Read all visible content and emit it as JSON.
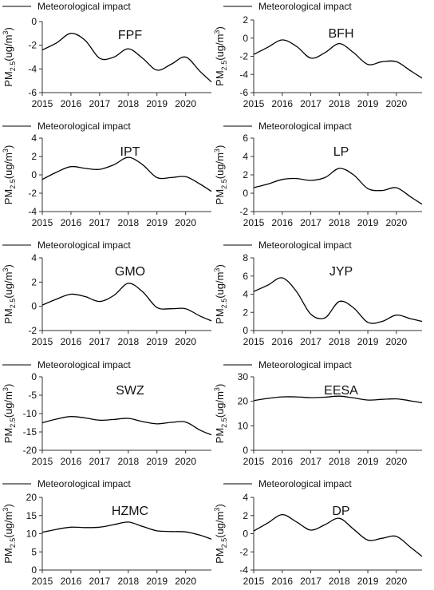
{
  "legend_label": "Meteorological impact",
  "ylabel": "PM2.5(ug/m3)",
  "ylabel_parts": {
    "base": "PM",
    "sub": "2.5",
    "unit_open": "(ug/m",
    "sup": "3",
    "unit_close": ")"
  },
  "bfh_ylabel": "PM2.5(ug/m3)",
  "line_color": "#000000",
  "chart_data": [
    {
      "type": "line",
      "title": "FPF",
      "ylim": [
        -6,
        0
      ],
      "yticks": [
        -6,
        -4,
        -2,
        0
      ],
      "xlim": [
        2015,
        2020.9
      ],
      "xticks": [
        2015,
        2016,
        2017,
        2018,
        2019,
        2020
      ],
      "series": [
        {
          "x": [
            2015,
            2015.5,
            2016,
            2016.5,
            2017,
            2017.5,
            2018,
            2018.5,
            2019,
            2019.5,
            2020,
            2020.5,
            2020.9
          ],
          "values": [
            -2.4,
            -1.8,
            -1.0,
            -1.6,
            -3.1,
            -3.0,
            -2.3,
            -3.1,
            -4.1,
            -3.6,
            -3.0,
            -4.2,
            -5.1
          ]
        }
      ]
    },
    {
      "type": "line",
      "title": "BFH",
      "ylim": [
        -6,
        2
      ],
      "yticks": [
        -6,
        -4,
        -2,
        0,
        2
      ],
      "xlim": [
        2015,
        2020.9
      ],
      "xticks": [
        2015,
        2016,
        2017,
        2018,
        2019,
        2020
      ],
      "series": [
        {
          "x": [
            2015,
            2015.5,
            2016,
            2016.5,
            2017,
            2017.5,
            2018,
            2018.5,
            2019,
            2019.5,
            2020,
            2020.5,
            2020.9
          ],
          "values": [
            -1.8,
            -1.0,
            -0.2,
            -0.9,
            -2.2,
            -1.6,
            -0.6,
            -1.6,
            -2.9,
            -2.6,
            -2.6,
            -3.6,
            -4.4
          ]
        }
      ]
    },
    {
      "type": "line",
      "title": "IPT",
      "ylim": [
        -4,
        4
      ],
      "yticks": [
        -4,
        -2,
        0,
        2,
        4
      ],
      "xlim": [
        2015,
        2020.9
      ],
      "xticks": [
        2015,
        2016,
        2017,
        2018,
        2019,
        2020
      ],
      "series": [
        {
          "x": [
            2015,
            2015.5,
            2016,
            2016.5,
            2017,
            2017.5,
            2018,
            2018.5,
            2019,
            2019.5,
            2020,
            2020.5,
            2020.9
          ],
          "values": [
            -0.5,
            0.3,
            0.9,
            0.7,
            0.6,
            1.1,
            1.9,
            1.1,
            -0.3,
            -0.3,
            -0.2,
            -1.0,
            -1.8
          ]
        }
      ]
    },
    {
      "type": "line",
      "title": "LP",
      "ylim": [
        -2,
        6
      ],
      "yticks": [
        -2,
        0,
        2,
        4,
        6
      ],
      "xlim": [
        2015,
        2020.9
      ],
      "xticks": [
        2015,
        2016,
        2017,
        2018,
        2019,
        2020
      ],
      "series": [
        {
          "x": [
            2015,
            2015.5,
            2016,
            2016.5,
            2017,
            2017.5,
            2018,
            2018.5,
            2019,
            2019.5,
            2020,
            2020.5,
            2020.9
          ],
          "values": [
            0.6,
            1.0,
            1.5,
            1.6,
            1.4,
            1.7,
            2.7,
            2.0,
            0.5,
            0.3,
            0.6,
            -0.4,
            -1.2
          ]
        }
      ]
    },
    {
      "type": "line",
      "title": "GMO",
      "ylim": [
        -2,
        4
      ],
      "yticks": [
        -2,
        0,
        2,
        4
      ],
      "xlim": [
        2015,
        2020.9
      ],
      "xticks": [
        2015,
        2016,
        2017,
        2018,
        2019,
        2020
      ],
      "series": [
        {
          "x": [
            2015,
            2015.5,
            2016,
            2016.5,
            2017,
            2017.5,
            2018,
            2018.5,
            2019,
            2019.5,
            2020,
            2020.5,
            2020.9
          ],
          "values": [
            0.1,
            0.6,
            1.0,
            0.8,
            0.4,
            0.9,
            1.9,
            1.2,
            -0.1,
            -0.2,
            -0.2,
            -0.8,
            -1.2
          ]
        }
      ]
    },
    {
      "type": "line",
      "title": "JYP",
      "ylim": [
        0,
        8
      ],
      "yticks": [
        0,
        2,
        4,
        6,
        8
      ],
      "xlim": [
        2015,
        2020.9
      ],
      "xticks": [
        2015,
        2016,
        2017,
        2018,
        2019,
        2020
      ],
      "series": [
        {
          "x": [
            2015,
            2015.5,
            2016,
            2016.5,
            2017,
            2017.5,
            2018,
            2018.5,
            2019,
            2019.5,
            2020,
            2020.5,
            2020.9
          ],
          "values": [
            4.3,
            5.0,
            5.8,
            4.3,
            1.8,
            1.4,
            3.2,
            2.5,
            0.9,
            1.0,
            1.7,
            1.3,
            1.0
          ]
        }
      ]
    },
    {
      "type": "line",
      "title": "SWZ",
      "ylim": [
        -20,
        0
      ],
      "yticks": [
        -20,
        -15,
        -10,
        -5,
        0
      ],
      "xlim": [
        2015,
        2020.9
      ],
      "xticks": [
        2015,
        2016,
        2017,
        2018,
        2019,
        2020
      ],
      "series": [
        {
          "x": [
            2015,
            2015.5,
            2016,
            2016.5,
            2017,
            2017.5,
            2018,
            2018.5,
            2019,
            2019.5,
            2020,
            2020.5,
            2020.9
          ],
          "values": [
            -12.5,
            -11.5,
            -10.8,
            -11.2,
            -11.8,
            -11.6,
            -11.3,
            -12.2,
            -12.8,
            -12.4,
            -12.3,
            -14.5,
            -15.8
          ]
        }
      ]
    },
    {
      "type": "line",
      "title": "EESA",
      "ylim": [
        0,
        30
      ],
      "yticks": [
        0,
        10,
        20,
        30
      ],
      "xlim": [
        2015,
        2020.9
      ],
      "xticks": [
        2015,
        2016,
        2017,
        2018,
        2019,
        2020
      ],
      "series": [
        {
          "x": [
            2015,
            2015.5,
            2016,
            2016.5,
            2017,
            2017.5,
            2018,
            2018.5,
            2019,
            2019.5,
            2020,
            2020.5,
            2020.9
          ],
          "values": [
            20.3,
            21.2,
            21.8,
            21.8,
            21.5,
            21.7,
            22.1,
            21.4,
            20.5,
            20.8,
            21.0,
            20.2,
            19.4
          ]
        }
      ]
    },
    {
      "type": "line",
      "title": "HZMC",
      "ylim": [
        0,
        20
      ],
      "yticks": [
        0,
        5,
        10,
        15,
        20
      ],
      "xlim": [
        2015,
        2020.9
      ],
      "xticks": [
        2015,
        2016,
        2017,
        2018,
        2019,
        2020
      ],
      "series": [
        {
          "x": [
            2015,
            2015.5,
            2016,
            2016.5,
            2017,
            2017.5,
            2018,
            2018.5,
            2019,
            2019.5,
            2020,
            2020.5,
            2020.9
          ],
          "values": [
            10.4,
            11.2,
            11.8,
            11.7,
            11.8,
            12.5,
            13.2,
            12.0,
            10.8,
            10.6,
            10.5,
            9.6,
            8.5
          ]
        }
      ]
    },
    {
      "type": "line",
      "title": "DP",
      "ylim": [
        -4,
        4
      ],
      "yticks": [
        -4,
        -2,
        0,
        2,
        4
      ],
      "xlim": [
        2015,
        2020.9
      ],
      "xticks": [
        2015,
        2016,
        2017,
        2018,
        2019,
        2020
      ],
      "series": [
        {
          "x": [
            2015,
            2015.5,
            2016,
            2016.5,
            2017,
            2017.5,
            2018,
            2018.5,
            2019,
            2019.5,
            2020,
            2020.5,
            2020.9
          ],
          "values": [
            0.3,
            1.2,
            2.1,
            1.3,
            0.4,
            1.0,
            1.7,
            0.5,
            -0.7,
            -0.5,
            -0.3,
            -1.5,
            -2.5
          ]
        }
      ]
    }
  ]
}
